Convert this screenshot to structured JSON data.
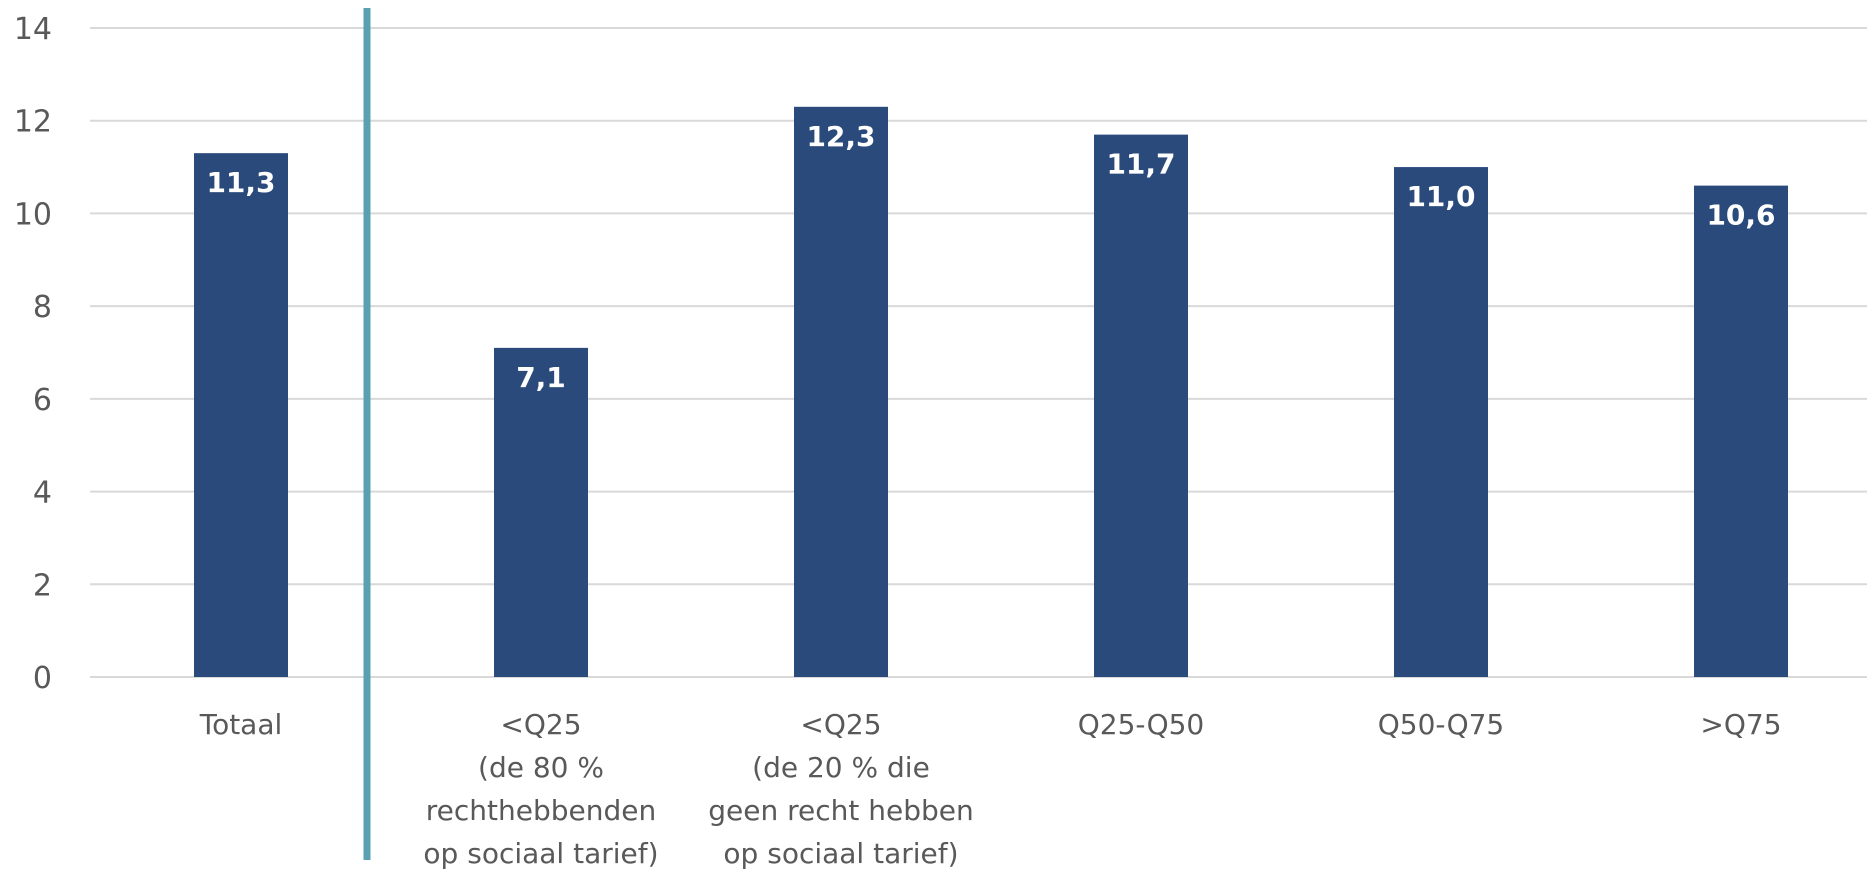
{
  "chart_data": {
    "type": "bar",
    "categories": [
      [
        "Totaal"
      ],
      [
        "<Q25",
        "(de 80 %",
        "rechthebbenden",
        "op sociaal tarief)"
      ],
      [
        "<Q25",
        "(de 20 % die",
        "geen recht hebben",
        "op sociaal tarief)"
      ],
      [
        "Q25-Q50"
      ],
      [
        "Q50-Q75"
      ],
      [
        ">Q75"
      ]
    ],
    "values": [
      11.3,
      7.1,
      12.3,
      11.7,
      11.0,
      10.6
    ],
    "data_labels": [
      "11,3",
      "7,1",
      "12,3",
      "11,7",
      "11,0",
      "10,6"
    ],
    "y_ticks": [
      "0",
      "2",
      "4",
      "6",
      "8",
      "10",
      "12",
      "14"
    ],
    "ylim": [
      0,
      14
    ],
    "grid": true,
    "title": "",
    "xlabel": "",
    "ylabel": "",
    "separator_after_category": 0,
    "colors": {
      "bar": "#2a4a7c",
      "grid": "#d9d9d9",
      "separator": "#5b9fb2",
      "tick_text": "#595959",
      "data_label_text": "#ffffff"
    }
  }
}
